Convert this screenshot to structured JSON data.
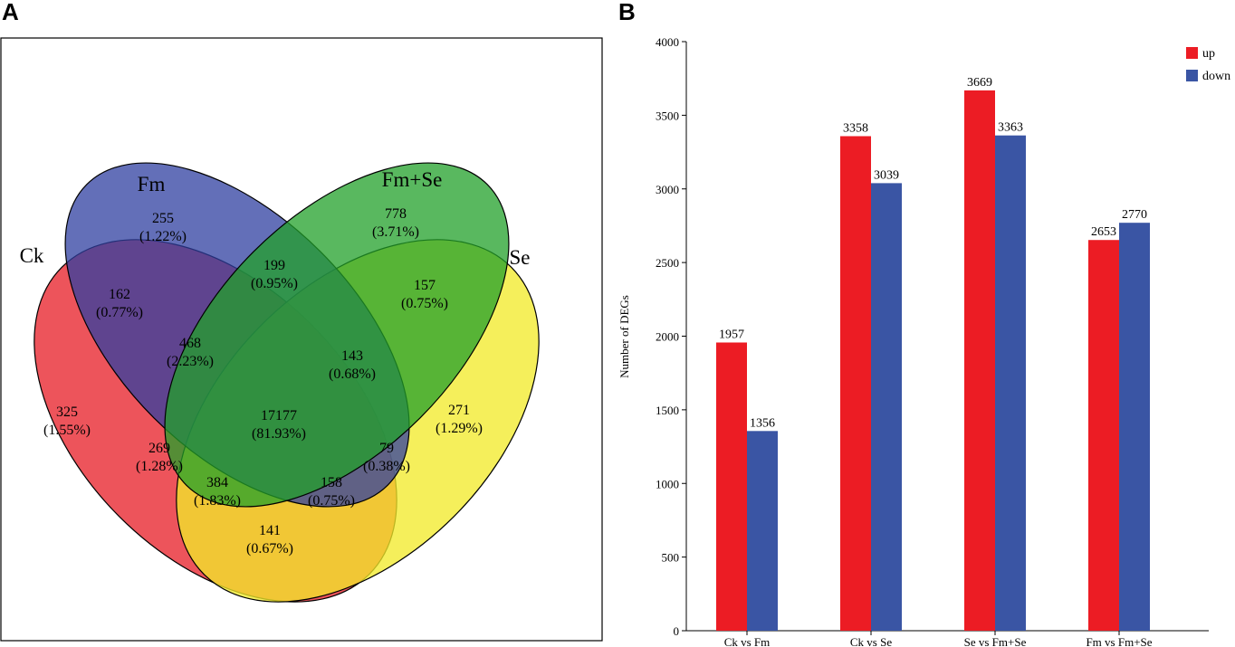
{
  "panels": {
    "a": {
      "letter": "A"
    },
    "b": {
      "letter": "B"
    }
  },
  "colors": {
    "ck": "#e8202a",
    "fm": "#2f3fa0",
    "fm_se": "#22a02a",
    "se": "#f2ea2a",
    "up": "#ec1c24",
    "down": "#3a55a4"
  },
  "chart_data": [
    {
      "type": "venn",
      "title": "",
      "sets": [
        {
          "name": "Ck",
          "color": "#e8202a"
        },
        {
          "name": "Fm",
          "color": "#2f3fa0"
        },
        {
          "name": "Fm+Se",
          "color": "#22a02a"
        },
        {
          "name": "Se",
          "color": "#f2ea2a"
        }
      ],
      "regions": [
        {
          "sets": [
            "Ck"
          ],
          "count": "325",
          "percent": "(1.55%)"
        },
        {
          "sets": [
            "Fm"
          ],
          "count": "255",
          "percent": "(1.22%)"
        },
        {
          "sets": [
            "Fm+Se"
          ],
          "count": "778",
          "percent": "(3.71%)"
        },
        {
          "sets": [
            "Se"
          ],
          "count": "271",
          "percent": "(1.29%)"
        },
        {
          "sets": [
            "Ck",
            "Fm"
          ],
          "count": "162",
          "percent": "(0.77%)"
        },
        {
          "sets": [
            "Fm",
            "Fm+Se"
          ],
          "count": "199",
          "percent": "(0.95%)"
        },
        {
          "sets": [
            "Fm+Se",
            "Se"
          ],
          "count": "157",
          "percent": "(0.75%)"
        },
        {
          "sets": [
            "Ck",
            "Fm",
            "Fm+Se"
          ],
          "count": "468",
          "percent": "(2.23%)"
        },
        {
          "sets": [
            "Fm",
            "Fm+Se",
            "Se"
          ],
          "count": "143",
          "percent": "(0.68%)"
        },
        {
          "sets": [
            "Ck",
            "Fm",
            "Fm+Se",
            "Se"
          ],
          "count": "17177",
          "percent": "(81.93%)"
        },
        {
          "sets": [
            "Ck",
            "Fm+Se"
          ],
          "count": "269",
          "percent": "(1.28%)"
        },
        {
          "sets": [
            "Fm",
            "Se"
          ],
          "count": "79",
          "percent": "(0.38%)"
        },
        {
          "sets": [
            "Ck",
            "Fm+Se",
            "Se"
          ],
          "count": "384",
          "percent": "(1.83%)"
        },
        {
          "sets": [
            "Ck",
            "Fm",
            "Se"
          ],
          "count": "158",
          "percent": "(0.75%)"
        },
        {
          "sets": [
            "Ck",
            "Se"
          ],
          "count": "141",
          "percent": "(0.67%)"
        }
      ]
    },
    {
      "type": "bar",
      "title": "",
      "xlabel": "",
      "ylabel": "Number of DEGs",
      "categories": [
        "Ck vs Fm",
        "Ck vs Se",
        "Se vs Fm+Se",
        "Fm vs Fm+Se"
      ],
      "series": [
        {
          "name": "up",
          "color": "#ec1c24",
          "values": [
            1957,
            3358,
            3669,
            2653
          ]
        },
        {
          "name": "down",
          "color": "#3a55a4",
          "values": [
            1356,
            3039,
            3363,
            2770
          ]
        }
      ],
      "ylim": [
        0,
        4000
      ],
      "yticks": [
        0,
        500,
        1000,
        1500,
        2000,
        2500,
        3000,
        3500,
        4000
      ],
      "grid": false,
      "legend": "top-right"
    }
  ]
}
